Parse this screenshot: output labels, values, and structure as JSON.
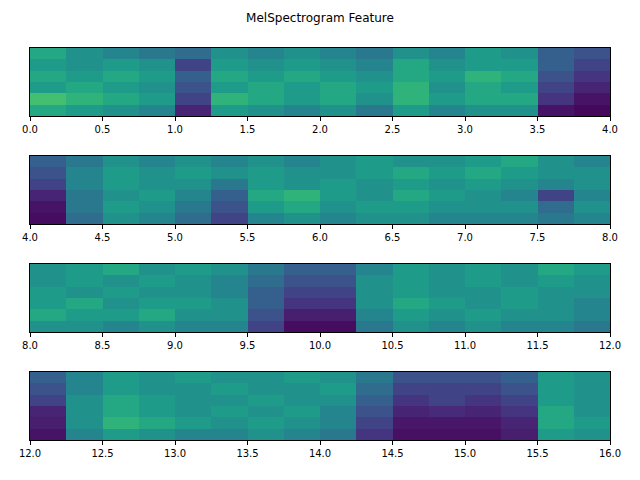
{
  "chart_data": {
    "type": "heatmap",
    "title": "MelSpectrogram Feature",
    "color": "Viridis",
    "tick_labels": "x",
    "zlim": [
      0,
      1
    ],
    "panels": [
      {
        "xlim": [
          0,
          4
        ],
        "xticks": [
          {
            "value": 0,
            "label": "0.0"
          },
          0.5,
          {
            "value": 1,
            "label": "1.0"
          },
          1.5,
          {
            "value": 2,
            "label": "2.0"
          },
          2.5,
          {
            "value": 3,
            "label": "3.0"
          },
          3.5,
          {
            "value": 4,
            "label": "4.0"
          }
        ],
        "x": [
          0.125,
          0.375,
          0.625,
          0.875,
          1.125,
          1.375,
          1.625,
          1.875,
          2.125,
          2.375,
          2.625,
          2.875,
          3.125,
          3.375,
          3.625,
          3.875
        ],
        "cells": [
          [
            0.6,
            0.55,
            0.5,
            0.45,
            0.1,
            0.55,
            0.5,
            0.45,
            0.5,
            0.4,
            0.55,
            0.45,
            0.5,
            0.5,
            0.05,
            0.02
          ],
          [
            0.7,
            0.65,
            0.6,
            0.55,
            0.2,
            0.65,
            0.6,
            0.55,
            0.6,
            0.5,
            0.65,
            0.55,
            0.6,
            0.6,
            0.15,
            0.05
          ],
          [
            0.55,
            0.6,
            0.55,
            0.5,
            0.25,
            0.55,
            0.6,
            0.55,
            0.6,
            0.55,
            0.65,
            0.5,
            0.6,
            0.55,
            0.2,
            0.1
          ],
          [
            0.6,
            0.55,
            0.6,
            0.55,
            0.3,
            0.6,
            0.55,
            0.6,
            0.55,
            0.5,
            0.6,
            0.55,
            0.65,
            0.6,
            0.25,
            0.15
          ],
          [
            0.55,
            0.5,
            0.55,
            0.5,
            0.2,
            0.55,
            0.5,
            0.55,
            0.5,
            0.45,
            0.6,
            0.5,
            0.55,
            0.55,
            0.3,
            0.2
          ],
          [
            0.6,
            0.5,
            0.45,
            0.4,
            0.35,
            0.5,
            0.45,
            0.5,
            0.45,
            0.4,
            0.5,
            0.45,
            0.55,
            0.5,
            0.3,
            0.25
          ]
        ]
      },
      {
        "xlim": [
          4,
          8
        ],
        "xticks": [
          {
            "value": 4,
            "label": "4.0"
          },
          4.5,
          {
            "value": 5,
            "label": "5.0"
          },
          5.5,
          {
            "value": 6,
            "label": "6.0"
          },
          6.5,
          {
            "value": 7,
            "label": "7.0"
          },
          7.5,
          {
            "value": 8,
            "label": "8.0"
          }
        ],
        "x": [
          4.125,
          4.375,
          4.625,
          4.875,
          5.125,
          5.375,
          5.625,
          5.875,
          6.125,
          6.375,
          6.625,
          6.875,
          7.125,
          7.375,
          7.625,
          7.875
        ],
        "cells": [
          [
            0.03,
            0.35,
            0.5,
            0.45,
            0.35,
            0.2,
            0.45,
            0.5,
            0.45,
            0.5,
            0.5,
            0.45,
            0.45,
            0.45,
            0.4,
            0.45
          ],
          [
            0.05,
            0.4,
            0.55,
            0.5,
            0.4,
            0.25,
            0.55,
            0.6,
            0.5,
            0.55,
            0.55,
            0.5,
            0.5,
            0.5,
            0.35,
            0.5
          ],
          [
            0.1,
            0.4,
            0.5,
            0.55,
            0.45,
            0.3,
            0.6,
            0.65,
            0.55,
            0.5,
            0.6,
            0.55,
            0.5,
            0.45,
            0.2,
            0.45
          ],
          [
            0.2,
            0.45,
            0.55,
            0.5,
            0.5,
            0.4,
            0.55,
            0.5,
            0.55,
            0.5,
            0.55,
            0.5,
            0.55,
            0.5,
            0.45,
            0.5
          ],
          [
            0.25,
            0.45,
            0.55,
            0.5,
            0.55,
            0.5,
            0.55,
            0.5,
            0.5,
            0.55,
            0.6,
            0.55,
            0.6,
            0.55,
            0.5,
            0.5
          ],
          [
            0.3,
            0.4,
            0.5,
            0.45,
            0.5,
            0.45,
            0.5,
            0.45,
            0.5,
            0.55,
            0.5,
            0.5,
            0.55,
            0.6,
            0.5,
            0.45
          ]
        ]
      },
      {
        "xlim": [
          8,
          12
        ],
        "xticks": [
          {
            "value": 8,
            "label": "8.0"
          },
          8.5,
          {
            "value": 9,
            "label": "9.0"
          },
          9.5,
          {
            "value": 10,
            "label": "10.0"
          },
          10.5,
          {
            "value": 11,
            "label": "11.0"
          },
          11.5,
          {
            "value": 12,
            "label": "12.0"
          }
        ],
        "x": [
          8.125,
          8.375,
          8.625,
          8.875,
          9.125,
          9.375,
          9.625,
          9.875,
          10.125,
          10.375,
          10.625,
          10.875,
          11.125,
          11.375,
          11.625,
          11.875
        ],
        "cells": [
          [
            0.5,
            0.5,
            0.45,
            0.5,
            0.45,
            0.45,
            0.2,
            0.03,
            0.03,
            0.4,
            0.5,
            0.45,
            0.5,
            0.45,
            0.45,
            0.4
          ],
          [
            0.6,
            0.55,
            0.55,
            0.6,
            0.5,
            0.5,
            0.25,
            0.08,
            0.08,
            0.45,
            0.55,
            0.5,
            0.55,
            0.5,
            0.5,
            0.45
          ],
          [
            0.55,
            0.6,
            0.5,
            0.55,
            0.55,
            0.5,
            0.3,
            0.15,
            0.15,
            0.5,
            0.6,
            0.55,
            0.5,
            0.55,
            0.5,
            0.45
          ],
          [
            0.55,
            0.5,
            0.55,
            0.5,
            0.5,
            0.45,
            0.3,
            0.2,
            0.2,
            0.5,
            0.55,
            0.5,
            0.5,
            0.55,
            0.5,
            0.5
          ],
          [
            0.5,
            0.55,
            0.5,
            0.55,
            0.5,
            0.45,
            0.35,
            0.25,
            0.25,
            0.5,
            0.55,
            0.5,
            0.55,
            0.5,
            0.55,
            0.5
          ],
          [
            0.5,
            0.55,
            0.6,
            0.5,
            0.55,
            0.5,
            0.4,
            0.3,
            0.3,
            0.45,
            0.55,
            0.5,
            0.55,
            0.5,
            0.6,
            0.55
          ]
        ]
      },
      {
        "xlim": [
          12,
          16
        ],
        "xticks": [
          {
            "value": 12,
            "label": "12.0"
          },
          12.5,
          {
            "value": 13,
            "label": "13.0"
          },
          13.5,
          {
            "value": 14,
            "label": "14.0"
          },
          14.5,
          {
            "value": 15,
            "label": "15.0"
          },
          15.5,
          {
            "value": 16,
            "label": "16.0"
          }
        ],
        "x": [
          12.125,
          12.375,
          12.625,
          12.875,
          13.125,
          13.375,
          13.625,
          13.875,
          14.125,
          14.375,
          14.625,
          14.875,
          15.125,
          15.375,
          15.625,
          15.875
        ],
        "cells": [
          [
            0.05,
            0.45,
            0.55,
            0.5,
            0.45,
            0.45,
            0.5,
            0.45,
            0.4,
            0.15,
            0.04,
            0.04,
            0.04,
            0.08,
            0.55,
            0.5
          ],
          [
            0.08,
            0.5,
            0.65,
            0.6,
            0.55,
            0.5,
            0.55,
            0.5,
            0.45,
            0.2,
            0.06,
            0.06,
            0.06,
            0.1,
            0.6,
            0.55
          ],
          [
            0.1,
            0.5,
            0.6,
            0.55,
            0.5,
            0.55,
            0.5,
            0.55,
            0.45,
            0.25,
            0.1,
            0.12,
            0.1,
            0.15,
            0.6,
            0.5
          ],
          [
            0.2,
            0.5,
            0.6,
            0.55,
            0.5,
            0.5,
            0.55,
            0.5,
            0.5,
            0.3,
            0.15,
            0.2,
            0.15,
            0.2,
            0.55,
            0.5
          ],
          [
            0.25,
            0.45,
            0.55,
            0.5,
            0.5,
            0.55,
            0.5,
            0.5,
            0.55,
            0.35,
            0.2,
            0.2,
            0.2,
            0.25,
            0.55,
            0.5
          ],
          [
            0.3,
            0.45,
            0.55,
            0.5,
            0.55,
            0.5,
            0.5,
            0.55,
            0.5,
            0.4,
            0.25,
            0.25,
            0.25,
            0.3,
            0.55,
            0.5
          ]
        ]
      }
    ]
  }
}
